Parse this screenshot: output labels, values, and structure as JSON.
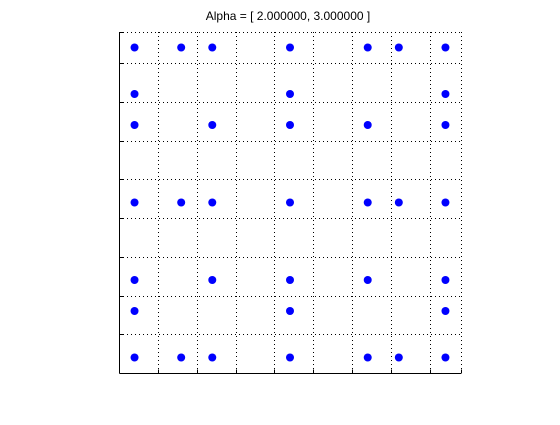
{
  "chart_data": {
    "type": "scatter",
    "title": "Alpha = [ 2.000000, 3.000000 ]",
    "xlabel": "",
    "ylabel": "",
    "xlim": [
      0,
      44
    ],
    "ylim": [
      0,
      44
    ],
    "xticks": [
      0,
      5,
      10,
      15,
      20,
      25,
      30,
      35,
      40,
      44
    ],
    "yticks": [
      0,
      5,
      10,
      15,
      20,
      25,
      30,
      35,
      40,
      44
    ],
    "show_tick_labels": false,
    "grid": true,
    "grid_style": "dotted",
    "box": false,
    "series": [
      {
        "marker": "circle",
        "color": "#0000ff",
        "points": [
          [
            2,
            42
          ],
          [
            8,
            42
          ],
          [
            12,
            42
          ],
          [
            22,
            42
          ],
          [
            32,
            42
          ],
          [
            36,
            42
          ],
          [
            42,
            42
          ],
          [
            2,
            36
          ],
          [
            22,
            36
          ],
          [
            42,
            36
          ],
          [
            2,
            32
          ],
          [
            12,
            32
          ],
          [
            22,
            32
          ],
          [
            32,
            32
          ],
          [
            42,
            32
          ],
          [
            2,
            22
          ],
          [
            8,
            22
          ],
          [
            12,
            22
          ],
          [
            22,
            22
          ],
          [
            32,
            22
          ],
          [
            36,
            22
          ],
          [
            42,
            22
          ],
          [
            2,
            12
          ],
          [
            12,
            12
          ],
          [
            22,
            12
          ],
          [
            32,
            12
          ],
          [
            42,
            12
          ],
          [
            2,
            8
          ],
          [
            22,
            8
          ],
          [
            42,
            8
          ],
          [
            2,
            2
          ],
          [
            8,
            2
          ],
          [
            12,
            2
          ],
          [
            22,
            2
          ],
          [
            32,
            2
          ],
          [
            36,
            2
          ],
          [
            42,
            2
          ]
        ]
      }
    ]
  }
}
